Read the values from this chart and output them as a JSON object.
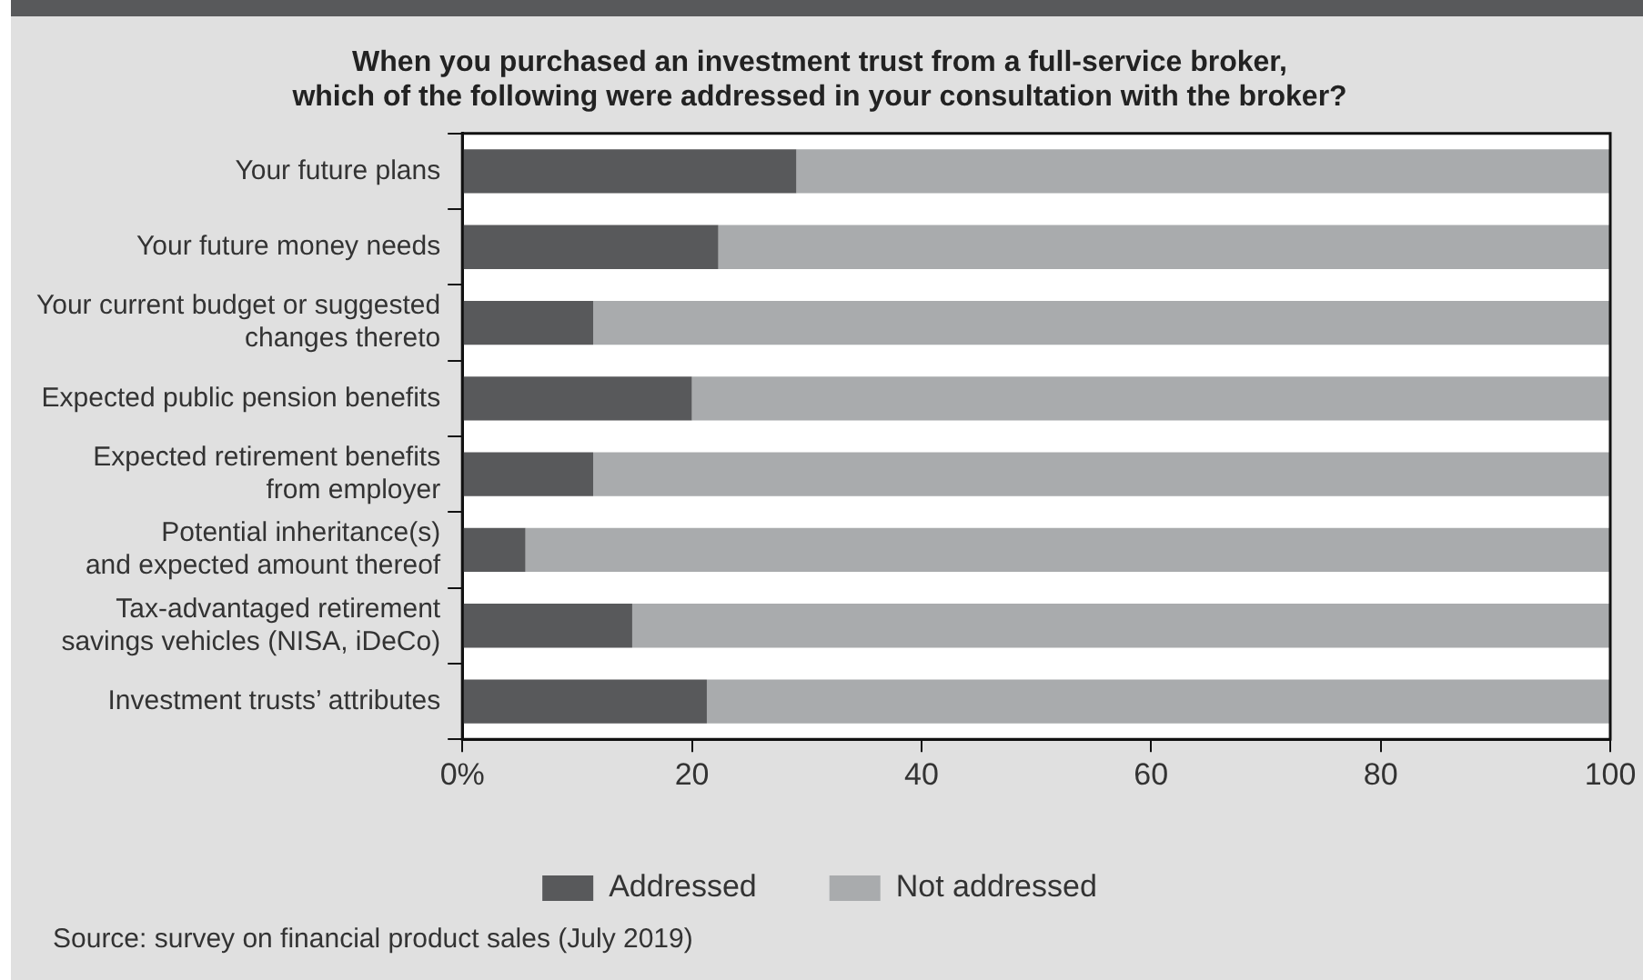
{
  "chart_data": {
    "type": "bar",
    "orientation": "horizontal",
    "stacked": true,
    "title": "When you purchased an investment trust from a full-service broker,\nwhich of the following were addressed in your consultation with the broker?",
    "categories": [
      "Your future plans",
      "Your future money needs",
      "Your current budget or suggested\nchanges thereto",
      "Expected public pension benefits",
      "Expected retirement benefits\nfrom employer",
      "Potential inheritance(s)\nand expected amount thereof",
      "Tax-advantaged retirement\nsavings vehicles (NISA, iDeCo)",
      "Investment trusts’ attributes"
    ],
    "series": [
      {
        "name": "Addressed",
        "color": "#58595b",
        "values": [
          29.1,
          22.3,
          11.4,
          20.0,
          11.4,
          5.5,
          14.8,
          21.3
        ]
      },
      {
        "name": "Not addressed",
        "color": "#a9abad",
        "values": [
          70.9,
          77.7,
          88.6,
          80.0,
          88.6,
          94.5,
          85.2,
          78.7
        ]
      }
    ],
    "xlim": [
      0,
      100
    ],
    "xticks": [
      {
        "value": 0,
        "label": "0%"
      },
      20,
      40,
      60,
      80,
      100
    ],
    "grid": false,
    "legend": "bottom",
    "annotations": [
      "Source: survey on financial product sales (July 2019)"
    ]
  }
}
